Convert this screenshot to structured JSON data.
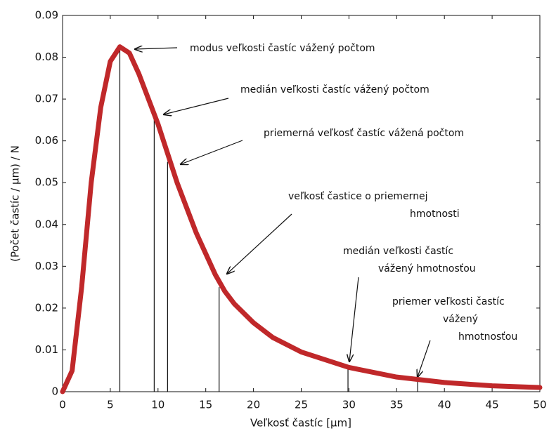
{
  "chart_data": {
    "type": "line",
    "x_label": "Veľkosť častíc [μm]",
    "y_label": "(Počet častíc  / μm) / N",
    "x": [
      0,
      1,
      2,
      3,
      4,
      5,
      6,
      7,
      8,
      9,
      10,
      11,
      12,
      13,
      14,
      15,
      16,
      17,
      18,
      20,
      22,
      25,
      30,
      35,
      40,
      45,
      50
    ],
    "series": [
      {
        "color": "#c0282a",
        "values": [
          0,
          0.005,
          0.025,
          0.05,
          0.068,
          0.079,
          0.0825,
          0.081,
          0.076,
          0.07,
          0.064,
          0.057,
          0.05,
          0.044,
          0.038,
          0.033,
          0.028,
          0.024,
          0.021,
          0.0165,
          0.013,
          0.0095,
          0.0058,
          0.0035,
          0.0022,
          0.0014,
          0.001
        ]
      }
    ],
    "xlim": [
      0,
      50
    ],
    "xticks": [
      0,
      5,
      10,
      15,
      20,
      25,
      30,
      35,
      40,
      45,
      50
    ],
    "ylim": [
      0,
      0.09
    ],
    "yticks": [
      0,
      0.01,
      0.02,
      0.03,
      0.04,
      0.05,
      0.06,
      0.07,
      0.08,
      0.09
    ],
    "markers": [
      {
        "x": 6,
        "y": 0.0825,
        "lines": [
          "modus veľkosti častíc vážený počtom"
        ]
      },
      {
        "x": 9.6,
        "y": 0.067,
        "lines": [
          "medián veľkosti častíc vážený počtom"
        ]
      },
      {
        "x": 11,
        "y": 0.055,
        "lines": [
          "priemerná veľkosť častíc vážená počtom"
        ]
      },
      {
        "x": 16.4,
        "y": 0.025,
        "lines": [
          "veľkosť častice o  priemernej",
          "hmotnosti"
        ]
      },
      {
        "x": 29.9,
        "y": 0.0055,
        "lines": [
          "medián veľkosti častíc",
          "vážený hmotnosťou"
        ]
      },
      {
        "x": 37.2,
        "y": 0.0027,
        "lines": [
          "priemer veľkosti častíc",
          "vážený",
          "hmotnosťou"
        ]
      }
    ]
  }
}
